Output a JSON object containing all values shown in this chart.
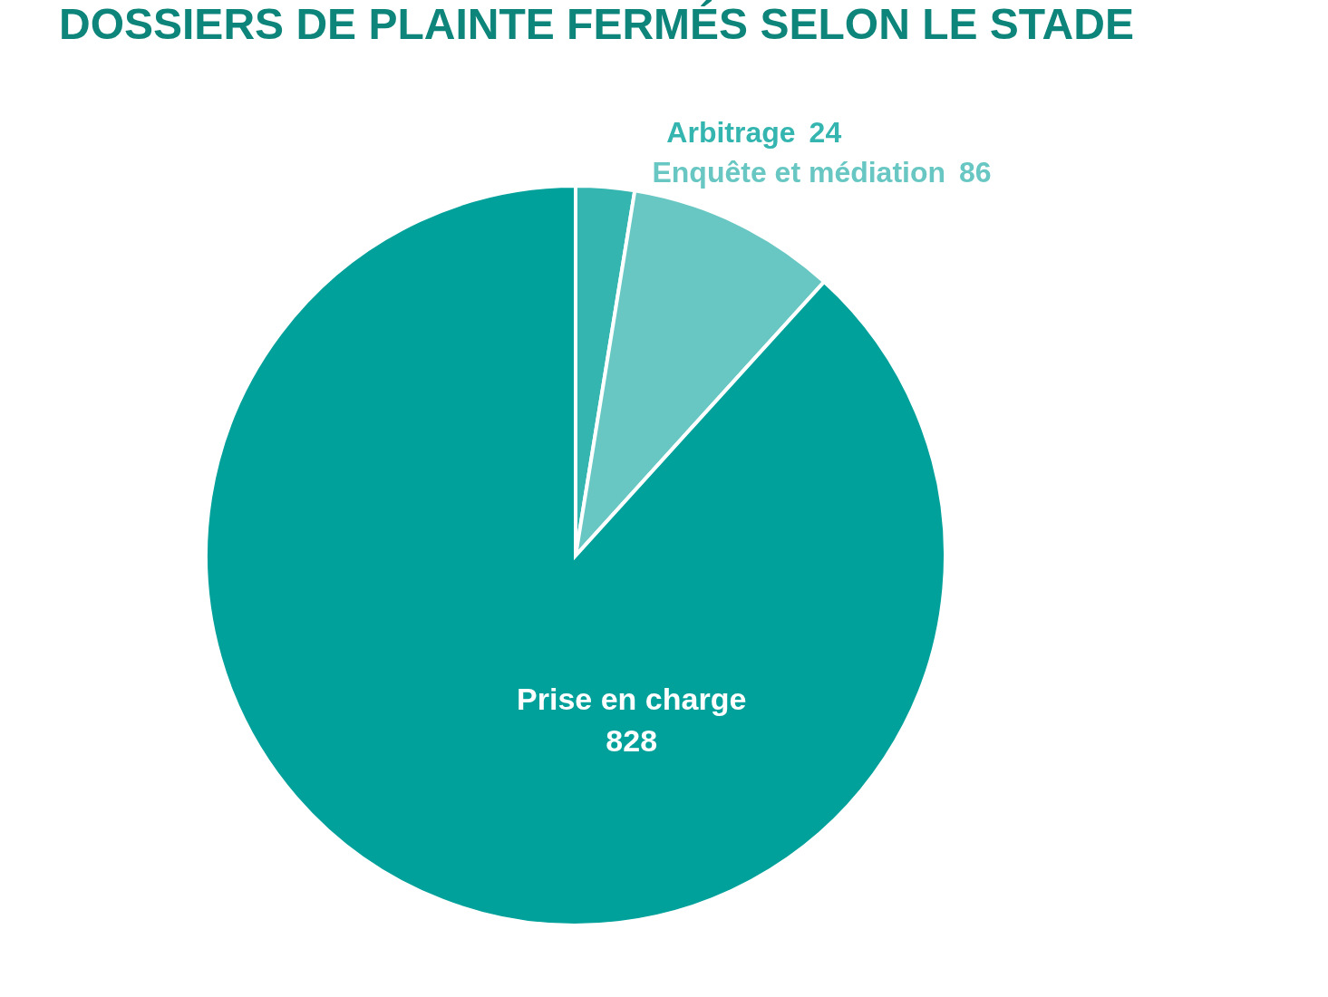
{
  "chart_data": {
    "type": "pie",
    "title": "DOSSIERS DE PLAINTE FERMÉS SELON LE STADE",
    "categories": [
      "Arbitrage",
      "Enquête et médiation",
      "Prise en charge"
    ],
    "values": [
      24,
      86,
      828
    ],
    "colors": [
      "#35b5b0",
      "#68c7c3",
      "#00a19a"
    ],
    "data_labels": true,
    "legend": false
  }
}
